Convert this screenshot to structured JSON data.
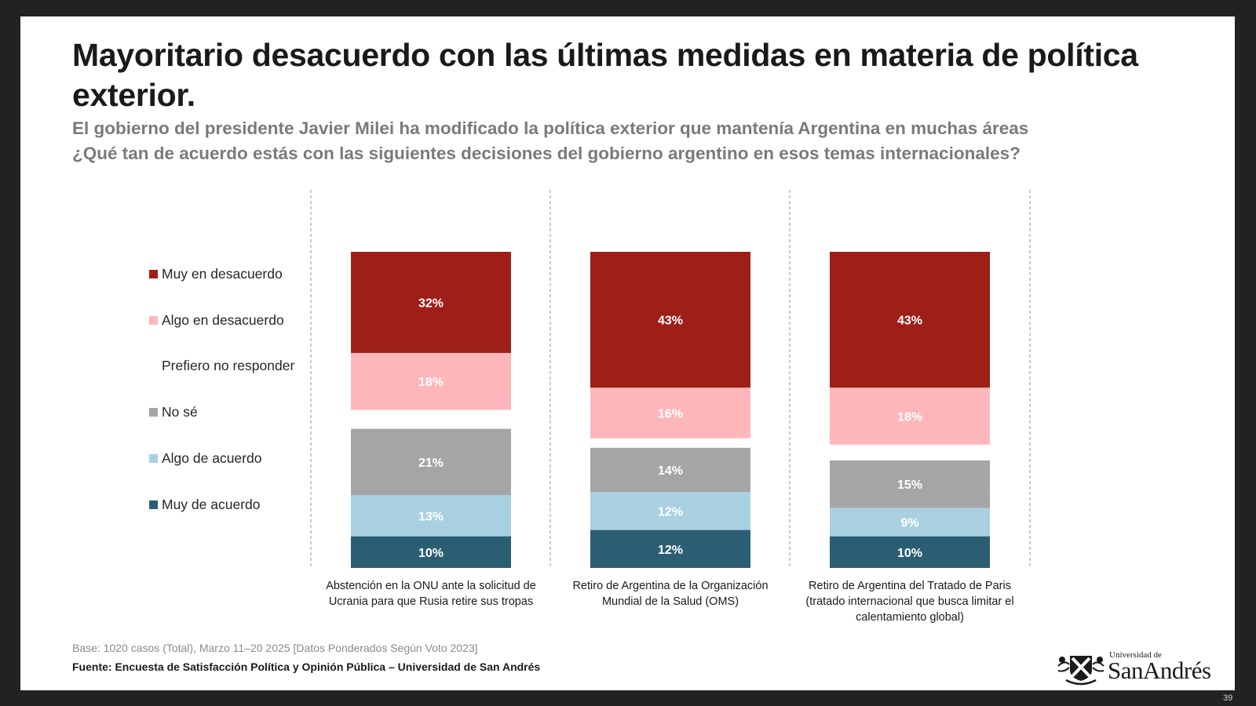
{
  "slide": {
    "title": "Mayoritario desacuerdo con las últimas medidas en materia de política exterior.",
    "subtitle_line1": "El gobierno del presidente Javier Milei ha modificado la política exterior que mantenía Argentina en muchas áreas",
    "subtitle_line2": "¿Qué tan de acuerdo estás con las siguientes decisiones del gobierno argentino en esos temas internacionales?",
    "base_note": "Base: 1020 casos (Total), Marzo 11–20 2025 [Datos Ponderados Según Voto 2023]",
    "source": "Fuente: Encuesta de Satisfacción Política y Opinión Pública – Universidad de San Andrés",
    "logo": {
      "small_text": "Universidad de",
      "big_text": "SanAndrés",
      "icon": "university-crest-icon"
    },
    "page_number": "39"
  },
  "chart_data": {
    "type": "bar",
    "stacked": true,
    "orientation": "vertical",
    "title": "",
    "xlabel": "",
    "ylabel": "",
    "ylim": [
      0,
      100
    ],
    "unit": "%",
    "grid": false,
    "legend_position": "left",
    "categories": [
      "Abstención en la ONU ante la solicitud de Ucrania para que Rusia retire sus tropas",
      "Retiro de Argentina de la Organización Mundial de la Salud (OMS)",
      "Retiro de Argentina del Tratado de Paris (tratado internacional que busca limitar el calentamiento global)"
    ],
    "series": [
      {
        "name": "Muy en desacuerdo",
        "color": "#9e1f18",
        "values": [
          32,
          43,
          43
        ],
        "show_label": true,
        "label_color": "#ffffff",
        "show_swatch": true
      },
      {
        "name": "Algo en desacuerdo",
        "color": "#fdb7bb",
        "values": [
          18,
          16,
          18
        ],
        "show_label": true,
        "label_color": "#ffffff",
        "show_swatch": true
      },
      {
        "name": "Prefiero no responder",
        "color": "#ffffff",
        "values": [
          6,
          3,
          5
        ],
        "show_label": false,
        "label_color": "#ffffff",
        "show_swatch": false
      },
      {
        "name": "No sé",
        "color": "#a5a5a5",
        "values": [
          21,
          14,
          15
        ],
        "show_label": true,
        "label_color": "#ffffff",
        "show_swatch": true
      },
      {
        "name": "Algo de acuerdo",
        "color": "#a9d0e0",
        "values": [
          13,
          12,
          9
        ],
        "show_label": true,
        "label_color": "#ffffff",
        "show_swatch": true
      },
      {
        "name": "Muy de acuerdo",
        "color": "#2b5e72",
        "values": [
          10,
          12,
          10
        ],
        "show_label": true,
        "label_color": "#ffffff",
        "show_swatch": true
      }
    ]
  }
}
